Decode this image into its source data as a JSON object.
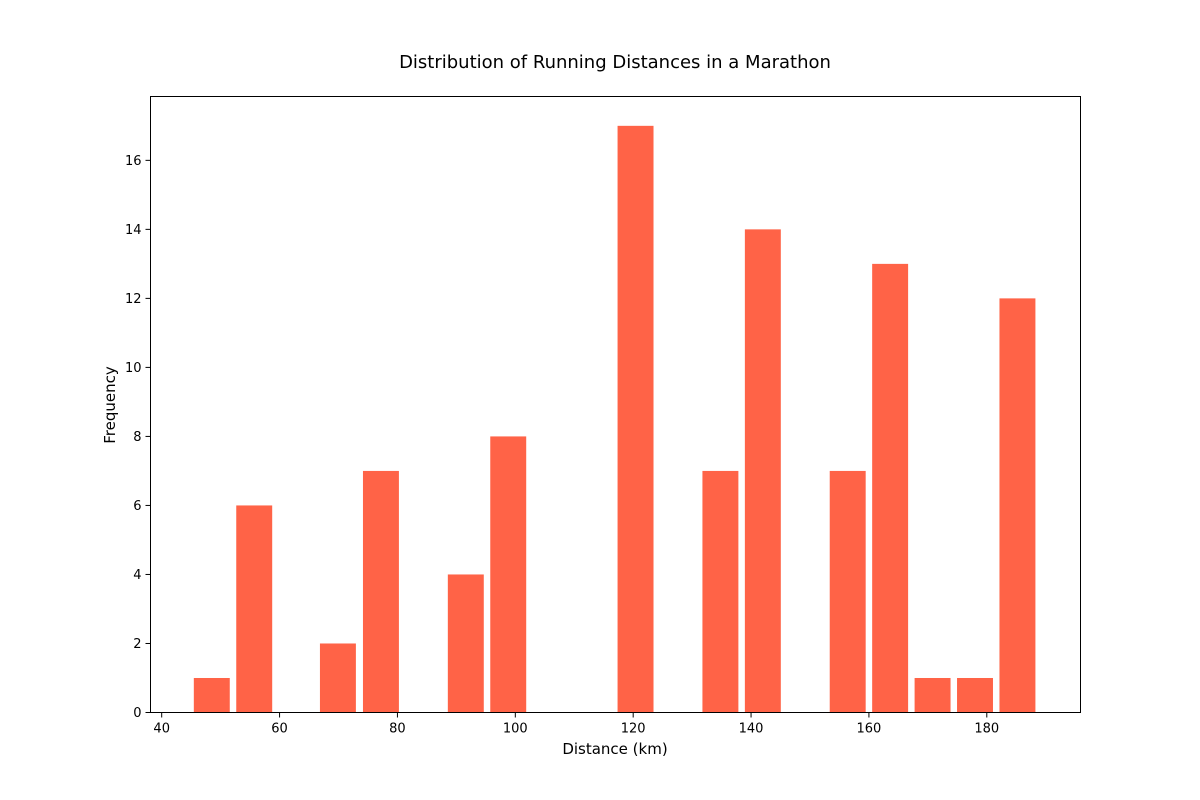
{
  "chart_data": {
    "type": "bar",
    "title": "Distribution of Running Distances in a Marathon",
    "xlabel": "Distance (km)",
    "ylabel": "Frequency",
    "xlim": [
      38.1,
      195.9
    ],
    "ylim": [
      0,
      17.85
    ],
    "xticks": [
      40,
      60,
      80,
      100,
      120,
      140,
      160,
      180
    ],
    "yticks": [
      0,
      2,
      4,
      6,
      8,
      10,
      12,
      14,
      16
    ],
    "bar_width": 6.1,
    "grid": false,
    "legend": null,
    "bar_color": "#ff6347",
    "bars": [
      {
        "x": 48.5,
        "value": 1
      },
      {
        "x": 55.7,
        "value": 6
      },
      {
        "x": 69.9,
        "value": 2
      },
      {
        "x": 77.2,
        "value": 7
      },
      {
        "x": 91.6,
        "value": 4
      },
      {
        "x": 98.8,
        "value": 8
      },
      {
        "x": 120.4,
        "value": 17
      },
      {
        "x": 134.8,
        "value": 7
      },
      {
        "x": 142.0,
        "value": 14
      },
      {
        "x": 156.4,
        "value": 7
      },
      {
        "x": 163.6,
        "value": 13
      },
      {
        "x": 170.8,
        "value": 1
      },
      {
        "x": 178.0,
        "value": 1
      },
      {
        "x": 185.2,
        "value": 12
      }
    ]
  }
}
